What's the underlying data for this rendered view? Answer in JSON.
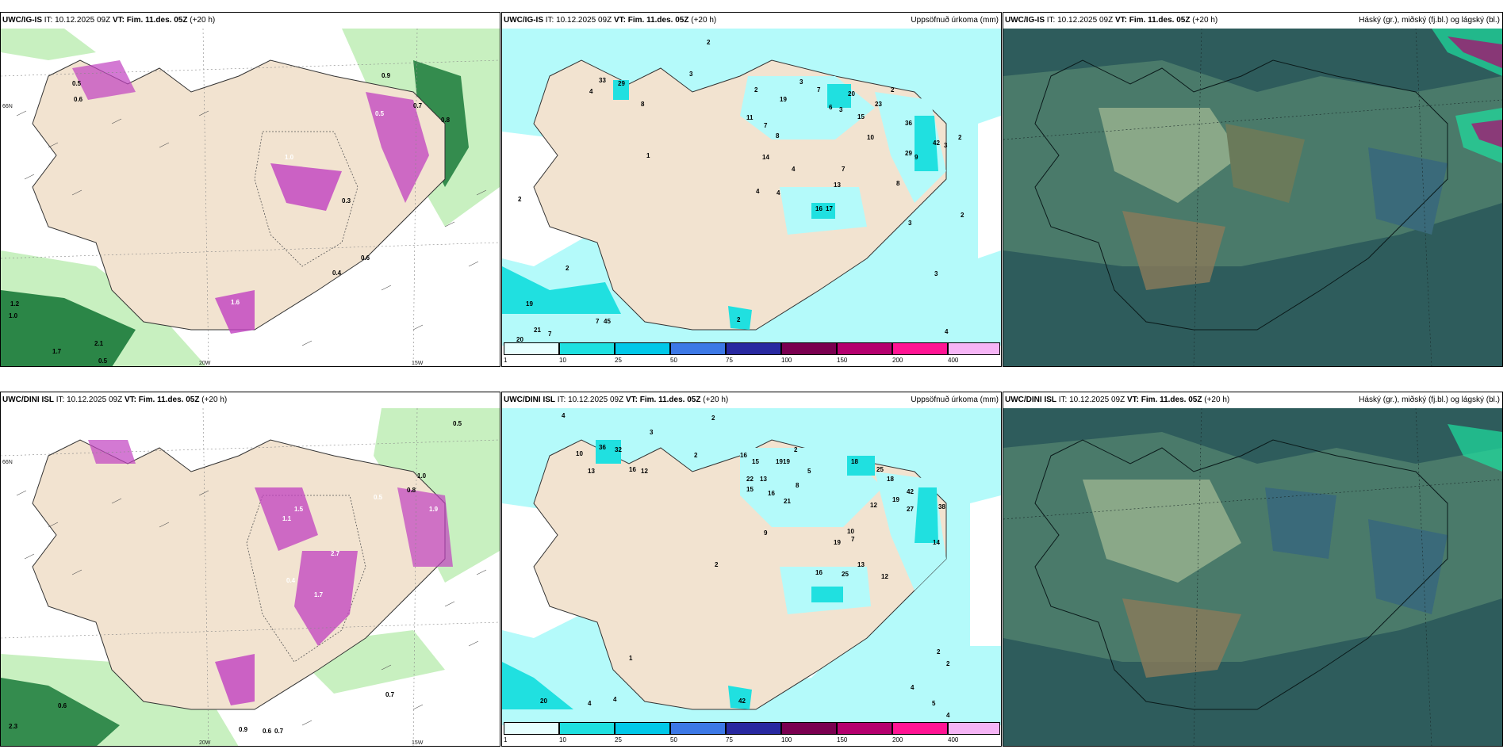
{
  "rows": [
    {
      "model": "UWC/IG-IS",
      "panels": [
        {
          "model": "UWC/IG-IS",
          "it_label": "IT:",
          "it_value": "10.12.2025 09Z",
          "vt_label": "VT:",
          "vt_value": "Fim. 11.des. 05Z",
          "lead": "(+20 h)",
          "right_title": ""
        },
        {
          "model": "UWC/IG-IS",
          "it_label": "IT:",
          "it_value": "10.12.2025 09Z",
          "vt_label": "VT:",
          "vt_value": "Fim. 11.des. 05Z",
          "lead": "(+20 h)",
          "right_title": "Uppsöfnuð úrkoma (mm)"
        },
        {
          "model": "UWC/IG-IS",
          "it_label": "IT:",
          "it_value": "10.12.2025 09Z",
          "vt_label": "VT:",
          "vt_value": "Fim. 11.des. 05Z",
          "lead": "(+20 h)",
          "right_title": "Háský (gr.), miðský (fj.bl.) og lágský (bl.)"
        }
      ],
      "precip_values": [
        "2",
        "3",
        "33",
        "29",
        "4",
        "8",
        "1",
        "3",
        "2",
        "7",
        "19",
        "6",
        "3",
        "11",
        "7",
        "8",
        "2",
        "20",
        "23",
        "15",
        "14",
        "10",
        "36",
        "42",
        "9",
        "2",
        "29",
        "3",
        "4",
        "4",
        "16",
        "17",
        "4",
        "13",
        "7",
        "8",
        "3",
        "2",
        "19",
        "20",
        "21",
        "7",
        "7",
        "45",
        "2",
        "2",
        "2",
        "3",
        "4",
        "4"
      ],
      "wind_values": [
        "0.5",
        "0.6",
        "1.0",
        "0.7",
        "1.7",
        "0.3",
        "0.9",
        "0.8",
        "1.2",
        "1.0",
        "2.1",
        "0.5",
        "0.6",
        "0.4",
        "1.6",
        "0.5"
      ]
    },
    {
      "model": "UWC/DINI ISL",
      "panels": [
        {
          "model": "UWC/DINI ISL",
          "it_label": "IT:",
          "it_value": "10.12.2025 09Z",
          "vt_label": "VT:",
          "vt_value": "Fim. 11.des. 05Z",
          "lead": "(+20 h)",
          "right_title": ""
        },
        {
          "model": "UWC/DINI ISL",
          "it_label": "IT:",
          "it_value": "10.12.2025 09Z",
          "vt_label": "VT:",
          "vt_value": "Fim. 11.des. 05Z",
          "lead": "(+20 h)",
          "right_title": "Uppsöfnuð úrkoma (mm)"
        },
        {
          "model": "UWC/DINI ISL",
          "it_label": "IT:",
          "it_value": "10.12.2025 09Z",
          "vt_label": "VT:",
          "vt_value": "Fim. 11.des. 05Z",
          "lead": "(+20 h)",
          "right_title": "Háský (gr.), miðský (fj.bl.) og lágský (bl.)"
        }
      ],
      "precip_values": [
        "4",
        "2",
        "3",
        "10",
        "36",
        "32",
        "13",
        "16",
        "12",
        "2",
        "16",
        "15",
        "19",
        "19",
        "2",
        "22",
        "13",
        "15",
        "16",
        "21",
        "8",
        "5",
        "18",
        "25",
        "18",
        "12",
        "19",
        "42",
        "27",
        "38",
        "14",
        "9",
        "10",
        "19",
        "7",
        "16",
        "25",
        "12",
        "13",
        "2",
        "20",
        "4",
        "4",
        "1",
        "42",
        "2",
        "2",
        "4",
        "5",
        "4"
      ],
      "wind_values": [
        "0.5",
        "0.6",
        "1.0",
        "0.8",
        "2.3",
        "0.9",
        "0.7",
        "1.5",
        "1.1",
        "0.4",
        "1.7",
        "2.7",
        "0.5",
        "0.6",
        "0.7",
        "1.9"
      ]
    }
  ],
  "colorbar": {
    "ticks": [
      "1",
      "10",
      "25",
      "50",
      "75",
      "100",
      "150",
      "200",
      "400"
    ],
    "colors": [
      "#e6ffff",
      "#1ee0e0",
      "#00c8e8",
      "#3c78e6",
      "#2828a0",
      "#7a0050",
      "#b4006e",
      "#ff1493",
      "#f5b4f5"
    ]
  },
  "axes": {
    "lon_left": "20W",
    "lon_right": "15W",
    "lat": "66N"
  },
  "colors": {
    "land": "#f2e3d0",
    "ocean_precip": "#b4fafa",
    "precip_low": "#b4fafa",
    "precip_mid": "#20e0e0",
    "wind_green_light": "#c8f0c0",
    "wind_green_dark": "#1a7a3a",
    "precip_magenta": "#c040c0",
    "cloud_dark": "#2e5c5c",
    "cloud_mid": "#4a7a6a",
    "cloud_light": "#8aa888"
  }
}
